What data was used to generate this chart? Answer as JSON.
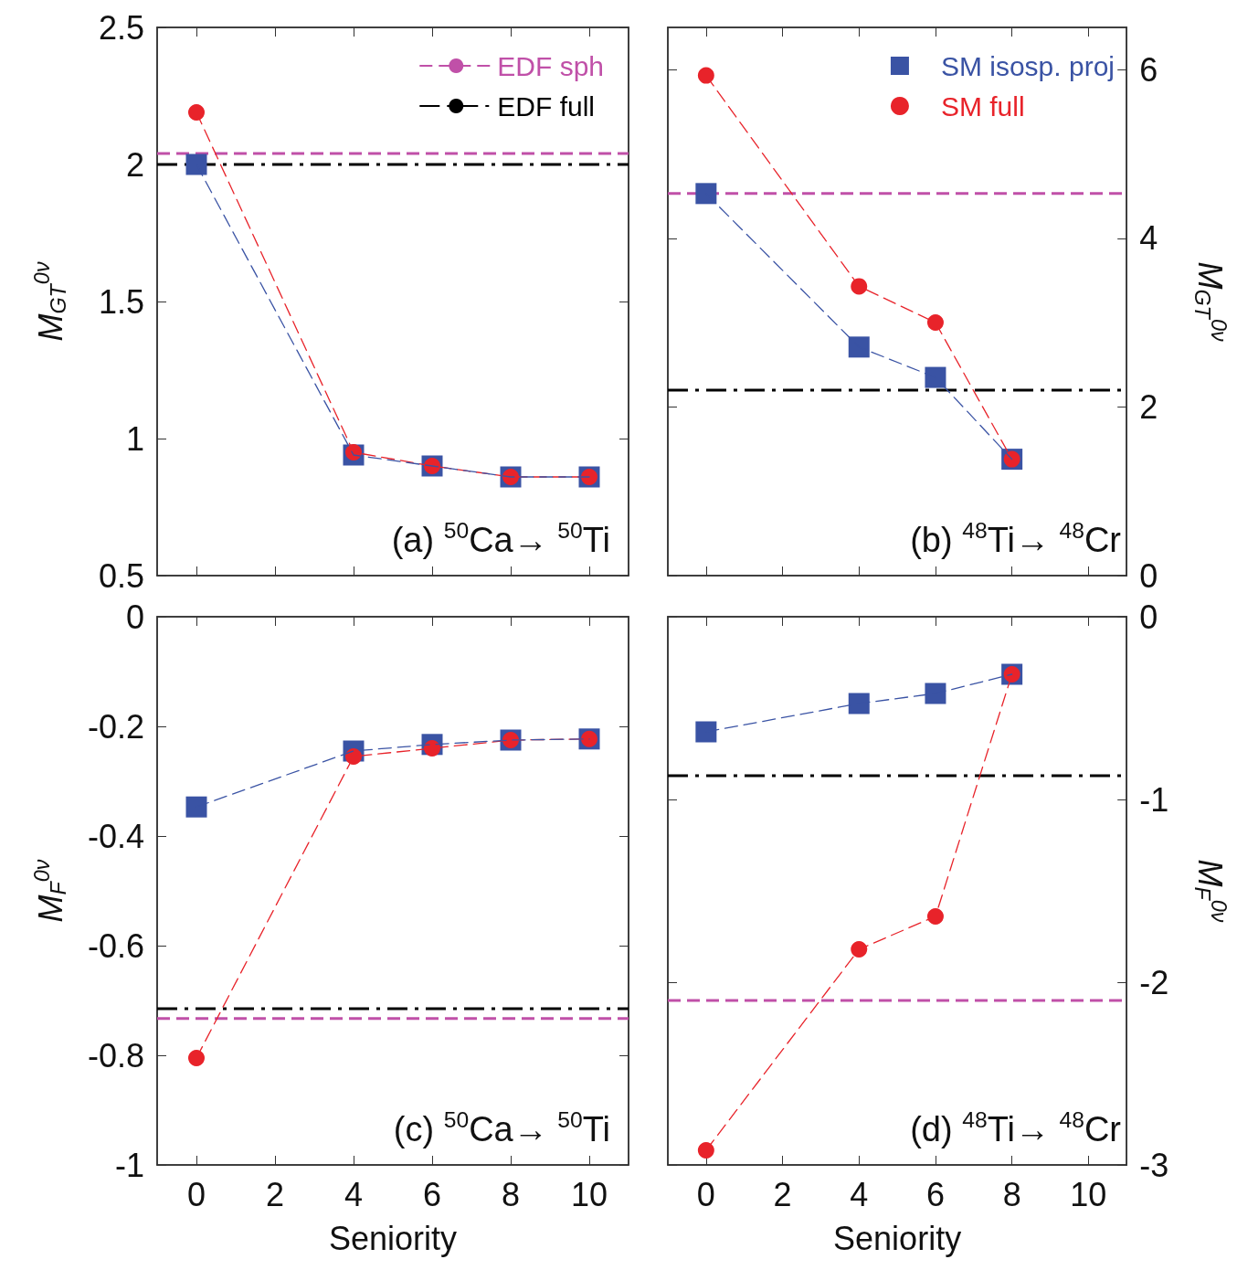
{
  "chart_data": [
    {
      "type": "line",
      "ylabel": "M$_{GT}$$^{0ν}$",
      "x": [
        0,
        4,
        6,
        8,
        10
      ],
      "xlim": [
        -1,
        11
      ],
      "xticks": [
        0,
        2,
        4,
        6,
        8,
        10
      ],
      "ylim": [
        0.5,
        2.5
      ],
      "yticks": [
        0.5,
        1,
        1.5,
        2,
        2.5
      ],
      "tick_labels": "y",
      "legend": "top right",
      "annotations": [
        "(a) $^{50}$Ca→ $^{50}$Ti"
      ],
      "ref_lines": [
        {
          "axis": "y",
          "value": 2.04,
          "label": "EDF sph",
          "color": "#c050a8",
          "line_style": "dashed"
        },
        {
          "axis": "y",
          "value": 2.0,
          "label": "EDF full",
          "color": "#000000",
          "line_style": "dashdot"
        }
      ],
      "series": [
        {
          "color": "#3a53a4",
          "values": [
            2.0,
            0.94,
            0.9,
            0.86,
            0.86
          ],
          "marker": "square",
          "line_style": "dashed"
        },
        {
          "color": "#e8232a",
          "values": [
            2.19,
            0.95,
            0.9,
            0.86,
            0.86
          ],
          "marker": "circle",
          "line_style": "dashed"
        }
      ]
    },
    {
      "type": "line",
      "y2label": "M$_{GT}$$^{0ν}$",
      "x": [
        0,
        4,
        6,
        8
      ],
      "xlim": [
        -1,
        11
      ],
      "xticks": [
        0,
        2,
        4,
        6,
        8,
        10
      ],
      "y2lim": [
        0,
        6.5
      ],
      "y2ticks": [
        0,
        2,
        4,
        6
      ],
      "tick_labels": "y",
      "legend": "top right",
      "annotations": [
        "(b) $^{48}$Ti→ $^{48}$Cr"
      ],
      "ref_lines": [
        {
          "axis": "y2",
          "value": 4.53,
          "color": "#c050a8",
          "line_style": "dashed"
        },
        {
          "axis": "y2",
          "value": 2.2,
          "color": "#000000",
          "line_style": "dashdot"
        }
      ],
      "series": [
        {
          "name": "SM isosp. proj",
          "color": "#3a53a4",
          "values": [
            4.53,
            2.71,
            2.35,
            1.38
          ],
          "marker": "square",
          "line_style": "dashed",
          "axis": "y2"
        },
        {
          "name": "SM full",
          "color": "#e8232a",
          "values": [
            5.93,
            3.43,
            3.0,
            1.38
          ],
          "marker": "circle",
          "line_style": "dashed",
          "axis": "y2"
        }
      ]
    },
    {
      "type": "line",
      "xlabel": "Seniority",
      "ylabel": "M$_{F}$$^{0ν}$",
      "x": [
        0,
        4,
        6,
        8,
        10
      ],
      "xlim": [
        -1,
        11
      ],
      "xticks": [
        0,
        2,
        4,
        6,
        8,
        10
      ],
      "ylim": [
        -1,
        0
      ],
      "yticks": [
        -1,
        -0.8,
        -0.6,
        -0.4,
        -0.2,
        0
      ],
      "annotations": [
        "(c) $^{50}$Ca→ $^{50}$Ti"
      ],
      "ref_lines": [
        {
          "axis": "y",
          "value": -0.733,
          "color": "#c050a8",
          "line_style": "dashed"
        },
        {
          "axis": "y",
          "value": -0.715,
          "color": "#000000",
          "line_style": "dashdot"
        }
      ],
      "series": [
        {
          "color": "#3a53a4",
          "values": [
            -0.347,
            -0.245,
            -0.233,
            -0.225,
            -0.223
          ],
          "marker": "square",
          "line_style": "dashed"
        },
        {
          "color": "#e8232a",
          "values": [
            -0.805,
            -0.255,
            -0.24,
            -0.225,
            -0.223
          ],
          "marker": "circle",
          "line_style": "dashed"
        }
      ]
    },
    {
      "type": "line",
      "xlabel": "Seniority",
      "y2label": "M$_{F}$$^{0ν}$",
      "x": [
        0,
        4,
        6,
        8
      ],
      "xlim": [
        -1,
        11
      ],
      "xticks": [
        0,
        2,
        4,
        6,
        8,
        10
      ],
      "y2lim": [
        -3,
        0
      ],
      "y2ticks": [
        -3,
        -2,
        -1,
        0
      ],
      "annotations": [
        "(d) $^{48}$Ti→ $^{48}$Cr"
      ],
      "ref_lines": [
        {
          "axis": "y2",
          "value": -2.1,
          "color": "#c050a8",
          "line_style": "dashed"
        },
        {
          "axis": "y2",
          "value": -0.87,
          "color": "#000000",
          "line_style": "dashdot"
        }
      ],
      "series": [
        {
          "color": "#3a53a4",
          "values": [
            -0.63,
            -0.475,
            -0.42,
            -0.315
          ],
          "marker": "square",
          "line_style": "dashed",
          "axis": "y2"
        },
        {
          "color": "#e8232a",
          "values": [
            -2.92,
            -1.82,
            -1.64,
            -0.315
          ],
          "marker": "circle",
          "line_style": "dashed",
          "axis": "y2"
        }
      ]
    }
  ]
}
